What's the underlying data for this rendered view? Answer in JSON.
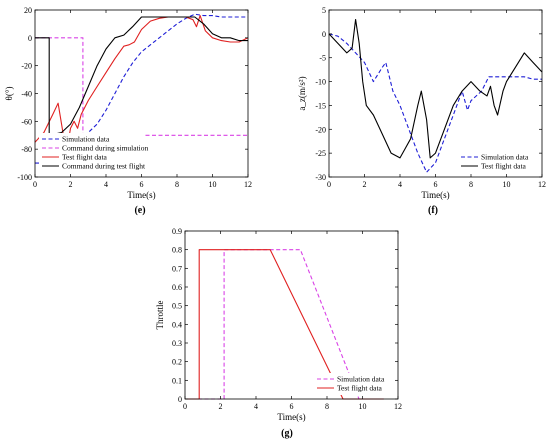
{
  "chart_data": [
    {
      "id": "e",
      "type": "line",
      "panel_label": "(e)",
      "xlabel": "Time(s)",
      "ylabel": "θ(°)",
      "xlim": [
        0,
        12
      ],
      "ylim": [
        -100,
        20
      ],
      "xticks": [
        0,
        2,
        4,
        6,
        8,
        10,
        12
      ],
      "yticks": [
        20,
        0,
        -20,
        -40,
        -60,
        -80,
        -100
      ],
      "legend_position": "lower-left",
      "series": [
        {
          "name": "Simulation data",
          "color": "#1f1fd6",
          "dash": "4,2.5",
          "x": [
            0,
            0.5,
            1,
            1.5,
            2,
            2.5,
            3,
            3.5,
            4,
            4.5,
            5,
            5.5,
            6,
            6.5,
            7,
            7.5,
            8,
            8.5,
            9,
            9.5,
            10,
            10.5,
            11,
            11.5,
            12
          ],
          "y": [
            -90,
            -90,
            -88,
            -85,
            -80,
            -74,
            -68,
            -62,
            -52,
            -40,
            -28,
            -18,
            -10,
            -5,
            0,
            5,
            10,
            14,
            17,
            16,
            16,
            15,
            15,
            15,
            15
          ]
        },
        {
          "name": "Command during simulation",
          "color": "#d943e6",
          "dash": "4,2.5",
          "x": [
            0,
            2.7,
            2.7,
            12
          ],
          "y": [
            0,
            0,
            -70,
            -70
          ]
        },
        {
          "name": "Test flight data",
          "color": "#e02020",
          "dash": "",
          "x": [
            0,
            0.5,
            1,
            1.3,
            1.6,
            1.8,
            2,
            2.2,
            2.4,
            2.6,
            3,
            3.5,
            4,
            4.5,
            5,
            5.3,
            5.6,
            6,
            6.5,
            7,
            7.5,
            8,
            8.5,
            8.9,
            9.1,
            9.3,
            9.6,
            10,
            10.5,
            11,
            11.5,
            12
          ],
          "y": [
            -75,
            -68,
            -55,
            -47,
            -70,
            -80,
            -65,
            -60,
            -65,
            -55,
            -45,
            -35,
            -25,
            -15,
            -6,
            -5,
            -3,
            6,
            12,
            14,
            15,
            15,
            15,
            13,
            8,
            16,
            5,
            0,
            -2,
            -3,
            -3,
            0
          ]
        },
        {
          "name": "Command during test flight",
          "color": "#000000",
          "dash": "",
          "x": [
            0,
            0.8,
            0.8,
            1.5,
            2,
            2.5,
            3,
            3.5,
            4,
            4.5,
            5,
            5.5,
            6,
            6.5,
            7,
            7.5,
            8,
            8.5,
            9,
            9.5,
            10,
            10.5,
            11,
            11.5,
            12
          ],
          "y": [
            0,
            0,
            -70,
            -68,
            -62,
            -50,
            -35,
            -20,
            -8,
            0,
            2,
            8,
            15,
            15,
            15,
            15,
            15,
            15,
            15,
            10,
            3,
            0,
            0,
            -2,
            -2
          ]
        }
      ]
    },
    {
      "id": "f",
      "type": "line",
      "panel_label": "(f)",
      "xlabel": "Time(s)",
      "ylabel": "a_z(m/s²)",
      "xlim": [
        0,
        12
      ],
      "ylim": [
        -30,
        5
      ],
      "xticks": [
        0,
        2,
        4,
        6,
        8,
        10,
        12
      ],
      "yticks": [
        5,
        0,
        -5,
        -10,
        -15,
        -20,
        -25,
        -30
      ],
      "legend_position": "lower-right",
      "series": [
        {
          "name": "Simulation data",
          "color": "#1f1fd6",
          "dash": "4,2.5",
          "x": [
            0,
            0.5,
            1,
            1.5,
            2,
            2.5,
            3,
            3.2,
            3.6,
            4,
            4.5,
            5,
            5.5,
            6,
            6.5,
            7,
            7.5,
            7.8,
            8,
            8.3,
            8.6,
            9,
            9.5,
            10,
            10.5,
            11,
            11.5,
            12
          ],
          "y": [
            0,
            -0.5,
            -2,
            -4,
            -6,
            -10,
            -7,
            -6,
            -12,
            -15,
            -20,
            -25,
            -29,
            -27,
            -22,
            -17,
            -12,
            -16,
            -14,
            -13,
            -12,
            -9,
            -9,
            -9,
            -9,
            -9,
            -9.5,
            -9.5
          ]
        },
        {
          "name": "Test flight data",
          "color": "#000000",
          "dash": "",
          "x": [
            0,
            0.5,
            1,
            1.3,
            1.5,
            1.7,
            1.9,
            2.1,
            2.5,
            3,
            3.5,
            4,
            4.3,
            4.6,
            5,
            5.2,
            5.5,
            5.7,
            6,
            6.5,
            7,
            7.5,
            8,
            8.5,
            8.9,
            9.1,
            9.3,
            9.5,
            9.8,
            10,
            10.5,
            11,
            11.5,
            12
          ],
          "y": [
            0,
            -2,
            -4,
            -3,
            3,
            -2,
            -10,
            -15,
            -17,
            -21,
            -25,
            -26,
            -24,
            -22,
            -15,
            -12,
            -18,
            -26,
            -25,
            -20,
            -15,
            -12,
            -10,
            -12,
            -13,
            -11,
            -15,
            -17,
            -12,
            -10,
            -7,
            -4,
            -6,
            -8
          ]
        }
      ]
    },
    {
      "id": "g",
      "type": "line",
      "panel_label": "(g)",
      "xlabel": "Time(s)",
      "ylabel": "Throttle",
      "xlim": [
        0,
        12
      ],
      "ylim": [
        0,
        0.9
      ],
      "xticks": [
        0,
        2,
        4,
        6,
        8,
        10,
        12
      ],
      "yticks": [
        0.9,
        0.8,
        0.7,
        0.6,
        0.5,
        0.4,
        0.3,
        0.2,
        0.1,
        0
      ],
      "legend_position": "lower-right",
      "series": [
        {
          "name": "Simulation data",
          "color": "#d943e6",
          "dash": "4,2.5",
          "x": [
            0,
            2.2,
            2.2,
            6.5,
            9.8,
            11.2
          ],
          "y": [
            0,
            0,
            0.8,
            0.8,
            0,
            0
          ]
        },
        {
          "name": "Test flight data",
          "color": "#e02020",
          "dash": "",
          "x": [
            0,
            0.8,
            0.8,
            4.8,
            8.9,
            11.2
          ],
          "y": [
            0,
            0,
            0.8,
            0.8,
            0,
            0
          ]
        }
      ]
    }
  ]
}
